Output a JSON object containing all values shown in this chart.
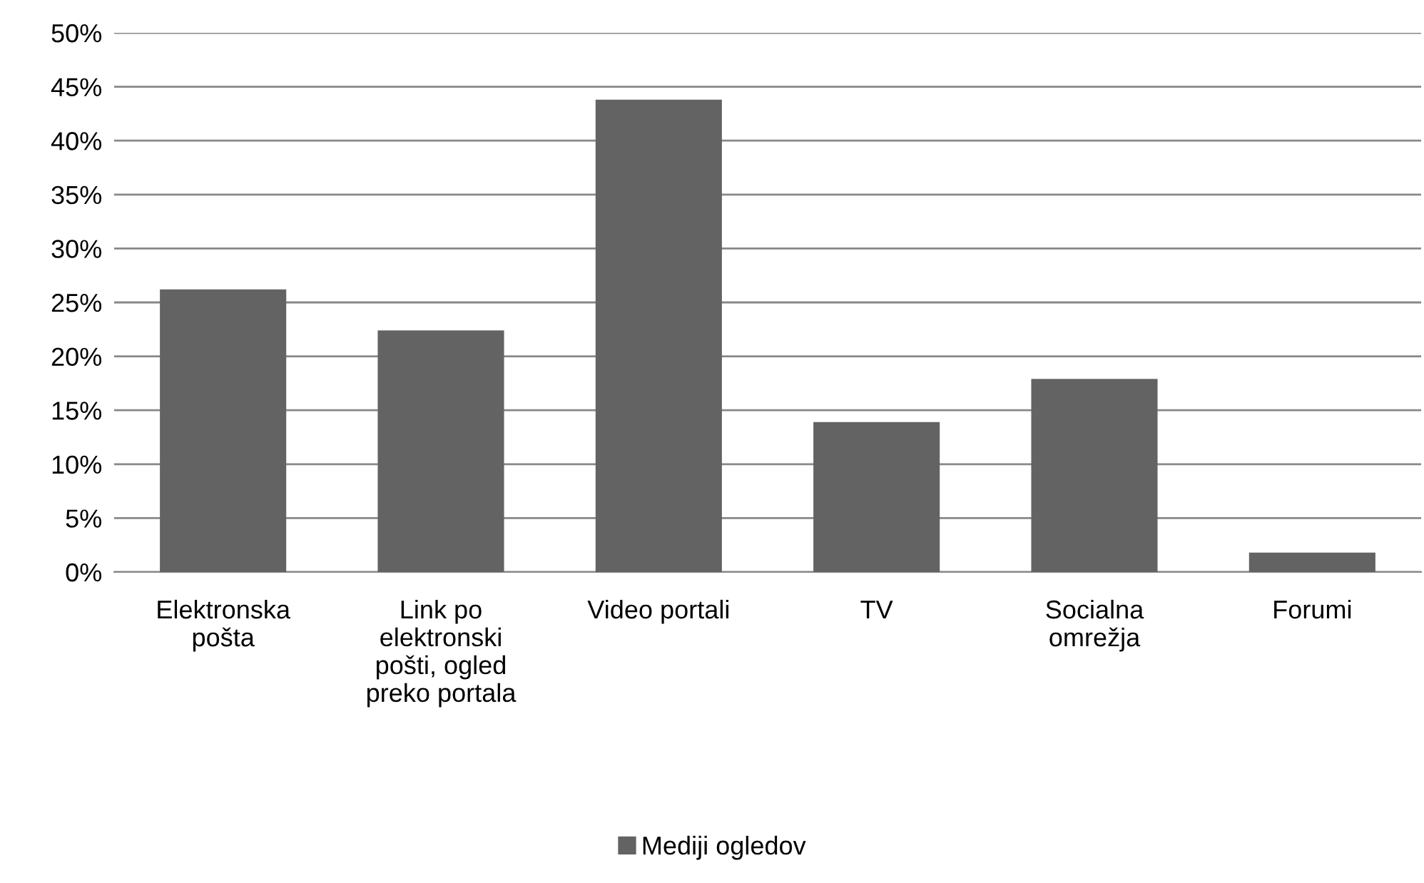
{
  "chart_data": {
    "type": "bar",
    "categories": [
      "Elektronska\npošta",
      "Link po\nelektronski\npošti, ogled\npreko portala",
      "Video portali",
      "TV",
      "Socialna\nomrežja",
      "Forumi"
    ],
    "series": [
      {
        "name": "Mediji ogledov",
        "color": "#636363",
        "values": [
          26.2,
          22.4,
          43.8,
          13.9,
          17.9,
          1.8
        ]
      }
    ],
    "ylim": [
      0,
      50
    ],
    "yticks": [
      {
        "value": 0,
        "label": "0%"
      },
      {
        "value": 5,
        "label": "5%"
      },
      {
        "value": 10,
        "label": "10%"
      },
      {
        "value": 15,
        "label": "15%"
      },
      {
        "value": 20,
        "label": "20%"
      },
      {
        "value": 25,
        "label": "25%"
      },
      {
        "value": 30,
        "label": "30%"
      },
      {
        "value": 35,
        "label": "35%"
      },
      {
        "value": 40,
        "label": "40%"
      },
      {
        "value": 45,
        "label": "45%"
      },
      {
        "value": 50,
        "label": "50%"
      }
    ],
    "grid": "y",
    "legend": "bottom"
  }
}
